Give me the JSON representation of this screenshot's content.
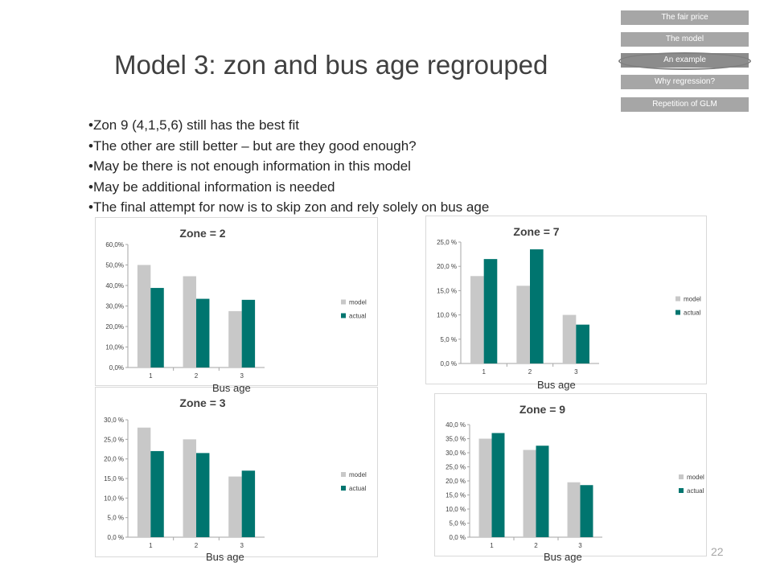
{
  "nav": {
    "items": [
      {
        "label": "The fair price",
        "active": false
      },
      {
        "label": "The model",
        "active": false
      },
      {
        "label": "An example",
        "active": true
      },
      {
        "label": "Why regression?",
        "active": false
      },
      {
        "label": "Repetition of GLM",
        "active": false
      }
    ]
  },
  "slide": {
    "title": "Model 3: zon and bus age regrouped",
    "bullets": [
      "•Zon 9 (4,1,5,6) still has the best fit",
      "•The other are still better – but are they good enough?",
      "•May be there is not enough information in this model",
      "•May be additional information is needed",
      "•The final attempt for now is to skip zon and rely solely on bus age"
    ],
    "page_number": "22",
    "xlabels": [
      "Bus age",
      "Bus age",
      "Bus age",
      "Bus age"
    ]
  },
  "colors": {
    "model": "#c8c8c8",
    "actual": "#00756f"
  },
  "chart_data": [
    {
      "type": "bar",
      "title": "Zone = 2",
      "categories": [
        "1",
        "2",
        "3"
      ],
      "series": [
        {
          "name": "model",
          "values": [
            50.0,
            44.5,
            27.5
          ]
        },
        {
          "name": "actual",
          "values": [
            38.8,
            33.5,
            33.0
          ]
        }
      ],
      "ylim": [
        0,
        60
      ],
      "yticks": [
        "0,0%",
        "10,0%",
        "20,0%",
        "30,0%",
        "40,0%",
        "50,0%",
        "60,0%"
      ],
      "xlabel": "Bus age",
      "legend": "right"
    },
    {
      "type": "bar",
      "title": "Zone = 7",
      "categories": [
        "1",
        "2",
        "3"
      ],
      "series": [
        {
          "name": "model",
          "values": [
            18.0,
            16.0,
            10.0
          ]
        },
        {
          "name": "actual",
          "values": [
            21.5,
            23.5,
            8.0
          ]
        }
      ],
      "ylim": [
        0,
        25
      ],
      "yticks": [
        "0,0 %",
        "5,0 %",
        "10,0 %",
        "15,0 %",
        "20,0 %",
        "25,0 %"
      ],
      "xlabel": "Bus age",
      "legend": "right"
    },
    {
      "type": "bar",
      "title": "Zone = 3",
      "categories": [
        "1",
        "2",
        "3"
      ],
      "series": [
        {
          "name": "model",
          "values": [
            28.0,
            25.0,
            15.5
          ]
        },
        {
          "name": "actual",
          "values": [
            22.0,
            21.5,
            17.0
          ]
        }
      ],
      "ylim": [
        0,
        30
      ],
      "yticks": [
        "0,0 %",
        "5,0 %",
        "10,0 %",
        "15,0 %",
        "20,0 %",
        "25,0 %",
        "30,0 %"
      ],
      "xlabel": "Bus age",
      "legend": "right"
    },
    {
      "type": "bar",
      "title": "Zone = 9",
      "categories": [
        "1",
        "2",
        "3"
      ],
      "series": [
        {
          "name": "model",
          "values": [
            35.0,
            31.0,
            19.5
          ]
        },
        {
          "name": "actual",
          "values": [
            37.0,
            32.5,
            18.5
          ]
        }
      ],
      "ylim": [
        0,
        40
      ],
      "yticks": [
        "0,0 %",
        "5,0 %",
        "10,0 %",
        "15,0 %",
        "20,0 %",
        "25,0 %",
        "30,0 %",
        "35,0 %",
        "40,0 %"
      ],
      "xlabel": "Bus age",
      "legend": "right"
    }
  ]
}
